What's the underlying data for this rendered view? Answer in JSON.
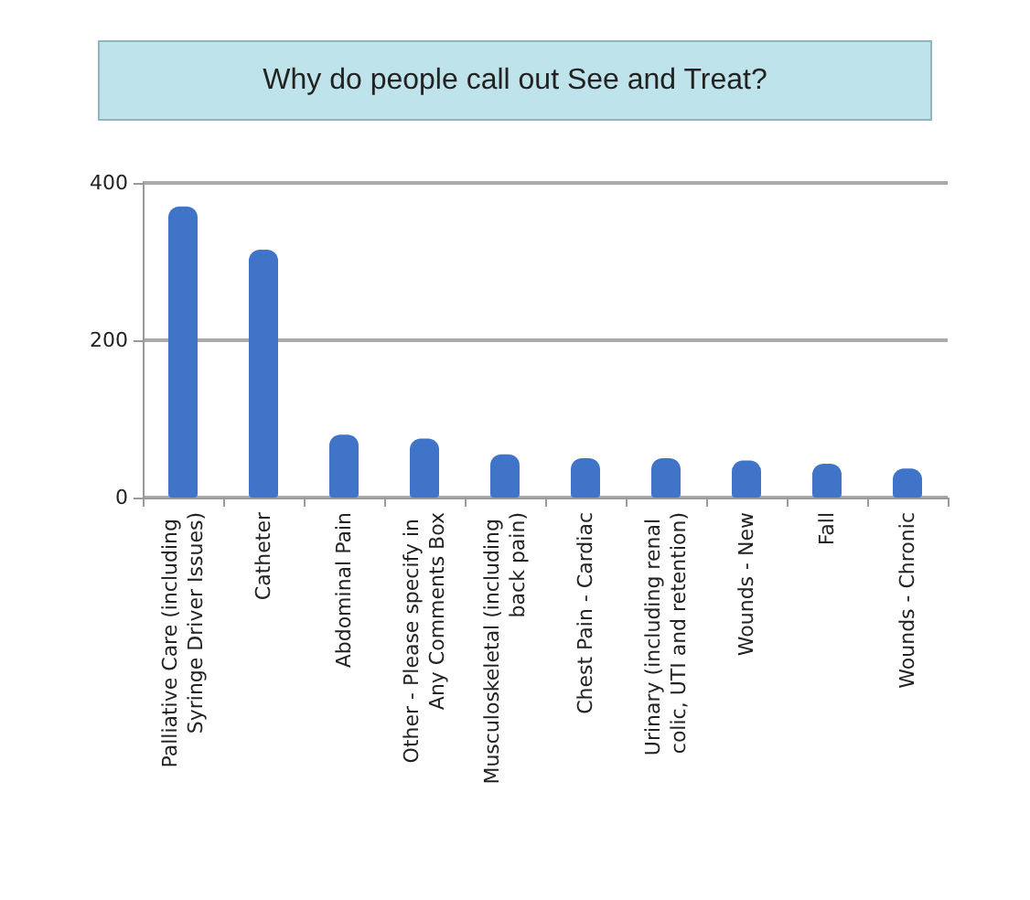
{
  "chart_data": {
    "type": "bar",
    "title": "Why do people call out See and Treat?",
    "categories": [
      "Palliative Care (including Syringe Driver Issues)",
      "Catheter",
      "Abdominal Pain",
      "Other - Please specify in Any Comments Box",
      "Musculoskeletal (including back pain)",
      "Chest Pain - Cardiac",
      "Urinary (including renal colic, UTI and retention)",
      "Wounds - New",
      "Fall",
      "Wounds - Chronic"
    ],
    "values": [
      370,
      315,
      80,
      75,
      55,
      50,
      50,
      47,
      43,
      37
    ],
    "color": "#3f74c9",
    "ylim": [
      0,
      400
    ],
    "yticks": [
      0,
      200,
      400
    ],
    "grid": "y"
  }
}
